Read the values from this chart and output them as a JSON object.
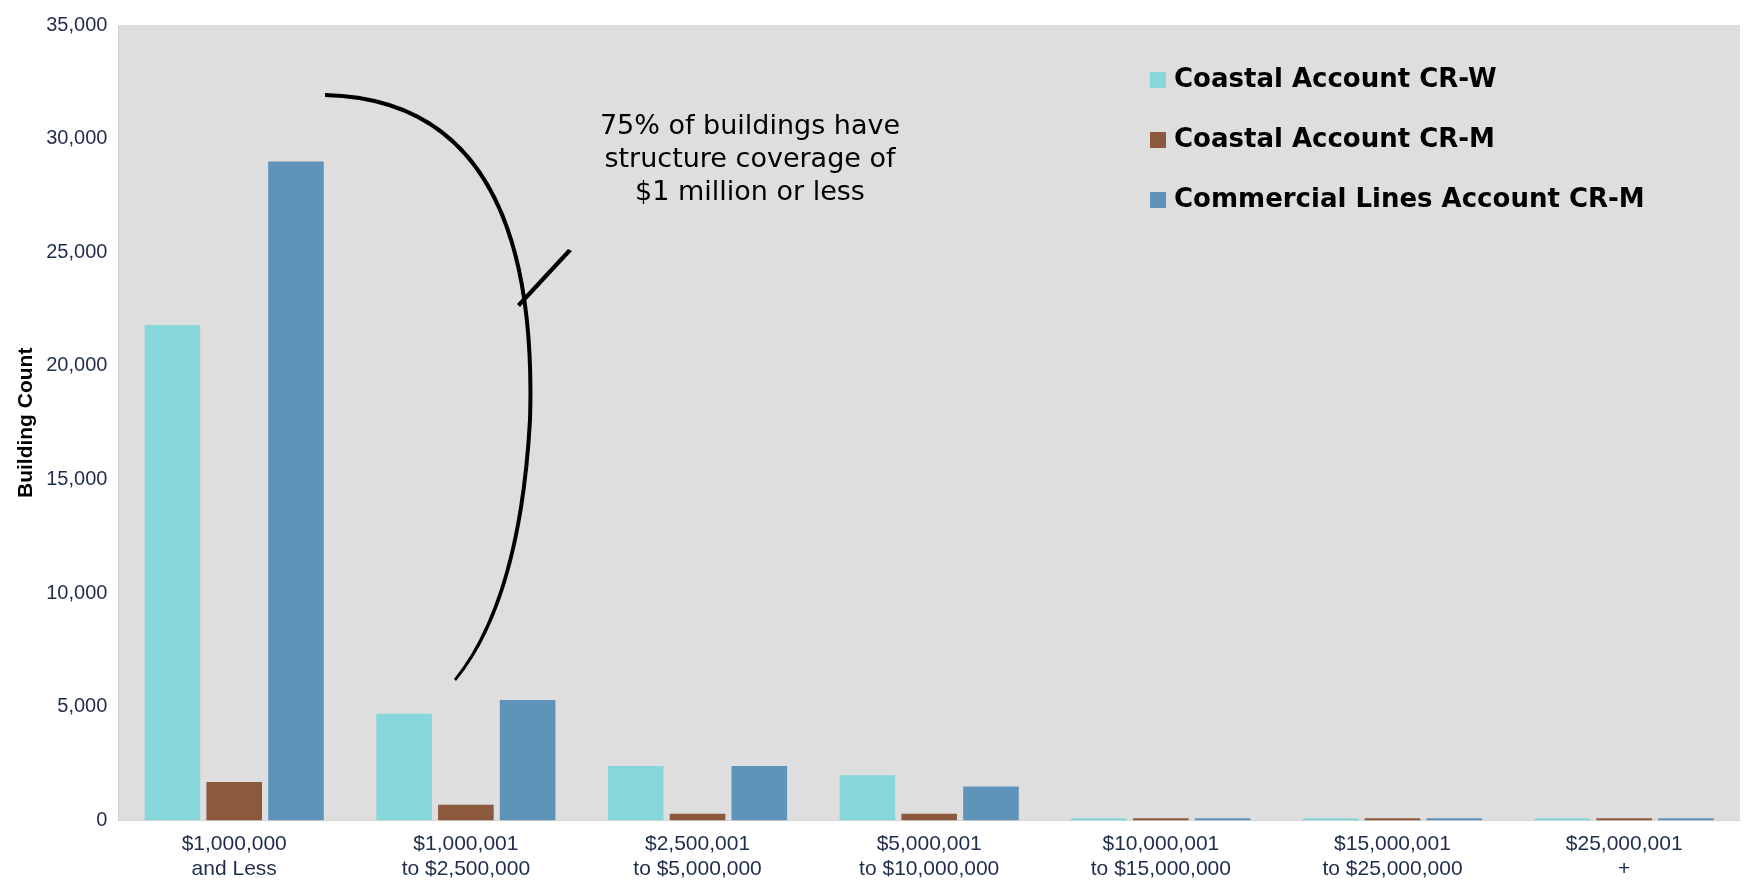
{
  "chart_data": {
    "type": "bar",
    "ylabel": "Building Count",
    "categories": [
      "$1,000,000 and Less",
      "$1,000,001 to $2,500,000",
      "$2,500,001 to $5,000,000",
      "$5,000,001 to $10,000,000",
      "$10,000,001 to $15,000,000",
      "$15,000,001 to $25,000,000",
      "$25,000,001 +"
    ],
    "series": [
      {
        "name": "Coastal Account CR-W",
        "color": "#87d7da",
        "values": [
          21800,
          4700,
          2400,
          2000,
          100,
          100,
          100
        ]
      },
      {
        "name": "Coastal Account CR-M",
        "color": "#8b5a3c",
        "values": [
          1700,
          700,
          300,
          300,
          100,
          100,
          100
        ]
      },
      {
        "name": "Commercial Lines Account CR-M",
        "color": "#5f93ba",
        "values": [
          29000,
          5300,
          2400,
          1500,
          100,
          100,
          100
        ]
      }
    ],
    "ylim": [
      0,
      35000
    ],
    "yticks": [
      0,
      {
        "value": 5000,
        "label": "5,000"
      },
      {
        "value": 10000,
        "label": "10,000"
      },
      {
        "value": 15000,
        "label": "15,000"
      },
      {
        "value": 20000,
        "label": "20,000"
      },
      {
        "value": 25000,
        "label": "25,000"
      },
      {
        "value": 30000,
        "label": "30,000"
      },
      {
        "value": 35000,
        "label": "35,000"
      }
    ],
    "legend": "top right",
    "annotations": [
      "75% of buildings have structure coverage of $1 million or less"
    ]
  }
}
